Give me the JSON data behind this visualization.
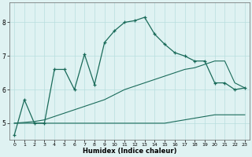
{
  "xlabel": "Humidex (Indice chaleur)",
  "bg_color": "#dff2f2",
  "line_color": "#1a6b5a",
  "grid_color": "#b8dede",
  "xlim": [
    -0.5,
    23.5
  ],
  "ylim": [
    4.5,
    8.6
  ],
  "xticks": [
    0,
    1,
    2,
    3,
    4,
    5,
    6,
    7,
    8,
    9,
    10,
    11,
    12,
    13,
    14,
    15,
    16,
    17,
    18,
    19,
    20,
    21,
    22,
    23
  ],
  "yticks": [
    5,
    6,
    7,
    8
  ],
  "line1_x": [
    0,
    1,
    2,
    3,
    4,
    5,
    6,
    7,
    8,
    9,
    10,
    11,
    12,
    13,
    14,
    15,
    16,
    17,
    18,
    19,
    20,
    21,
    22,
    23
  ],
  "line1_y": [
    4.65,
    5.7,
    5.0,
    5.0,
    6.6,
    6.6,
    6.0,
    7.05,
    6.15,
    7.4,
    7.75,
    8.0,
    8.05,
    8.15,
    7.65,
    7.35,
    7.1,
    7.0,
    6.85,
    6.85,
    6.2,
    6.2,
    6.0,
    6.05
  ],
  "line2_x": [
    0,
    2,
    3,
    4,
    5,
    6,
    7,
    8,
    9,
    10,
    11,
    12,
    13,
    14,
    15,
    16,
    17,
    18,
    19,
    20,
    21,
    22,
    23
  ],
  "line2_y": [
    5.0,
    5.0,
    5.0,
    5.0,
    5.0,
    5.0,
    5.0,
    5.0,
    5.0,
    5.0,
    5.0,
    5.0,
    5.0,
    5.0,
    5.0,
    5.05,
    5.1,
    5.15,
    5.2,
    5.25,
    5.25,
    5.25,
    5.25
  ],
  "line3_x": [
    0,
    2,
    3,
    4,
    5,
    6,
    7,
    8,
    9,
    10,
    11,
    12,
    13,
    14,
    15,
    16,
    17,
    18,
    19,
    20,
    21,
    22,
    23
  ],
  "line3_y": [
    5.0,
    5.05,
    5.1,
    5.2,
    5.3,
    5.4,
    5.5,
    5.6,
    5.7,
    5.85,
    6.0,
    6.1,
    6.2,
    6.3,
    6.4,
    6.5,
    6.6,
    6.65,
    6.75,
    6.85,
    6.85,
    6.2,
    6.05
  ]
}
